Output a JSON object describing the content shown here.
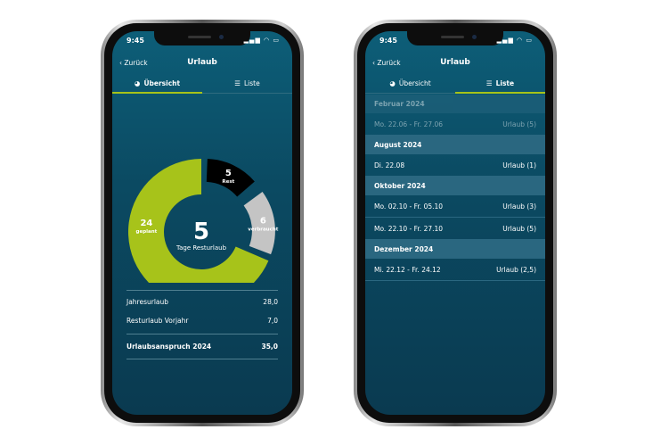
{
  "status": {
    "time": "9:45"
  },
  "nav": {
    "back": "‹ Zurück",
    "title": "Urlaub"
  },
  "tabs": [
    {
      "label": "Übersicht",
      "icon": "pie-chart-icon"
    },
    {
      "label": "Liste",
      "icon": "list-icon"
    }
  ],
  "colors": {
    "geplant": "#a7c31a",
    "rest": "#27b04f",
    "verbraucht": "#c4c4c4",
    "accent": "#a7c31a"
  },
  "chart_data": {
    "type": "pie",
    "center_value": "5",
    "center_label": "Tage Resturlaub",
    "slices": [
      {
        "name": "Rest",
        "value": 5
      },
      {
        "name": "verbraucht",
        "value": 6
      },
      {
        "name": "geplant",
        "value": 24
      }
    ]
  },
  "summary": {
    "rows": [
      {
        "label": "Jahresurlaub",
        "value": "28,0"
      },
      {
        "label": "Resturlaub Vorjahr",
        "value": "7,0"
      }
    ],
    "total": {
      "label": "Urlaubsanspruch 2024",
      "value": "35,0"
    }
  },
  "list": [
    {
      "month": "Februar  2024",
      "past": true,
      "items": [
        {
          "date": "Mo. 22.06  -  Fr. 27.06",
          "type": "Urlaub  (5)"
        }
      ]
    },
    {
      "month": "August  2024",
      "items": [
        {
          "date": "Di. 22.08",
          "type": "Urlaub  (1)"
        }
      ]
    },
    {
      "month": "Oktober  2024",
      "items": [
        {
          "date": "Mo. 02.10  -  Fr. 05.10",
          "type": "Urlaub  (3)"
        },
        {
          "date": "Mo. 22.10  -  Fr. 27.10",
          "type": "Urlaub  (5)"
        }
      ]
    },
    {
      "month": "Dezember  2024",
      "items": [
        {
          "date": "Mi. 22.12  -  Fr. 24.12",
          "type": "Urlaub  (2,5)"
        }
      ]
    }
  ]
}
